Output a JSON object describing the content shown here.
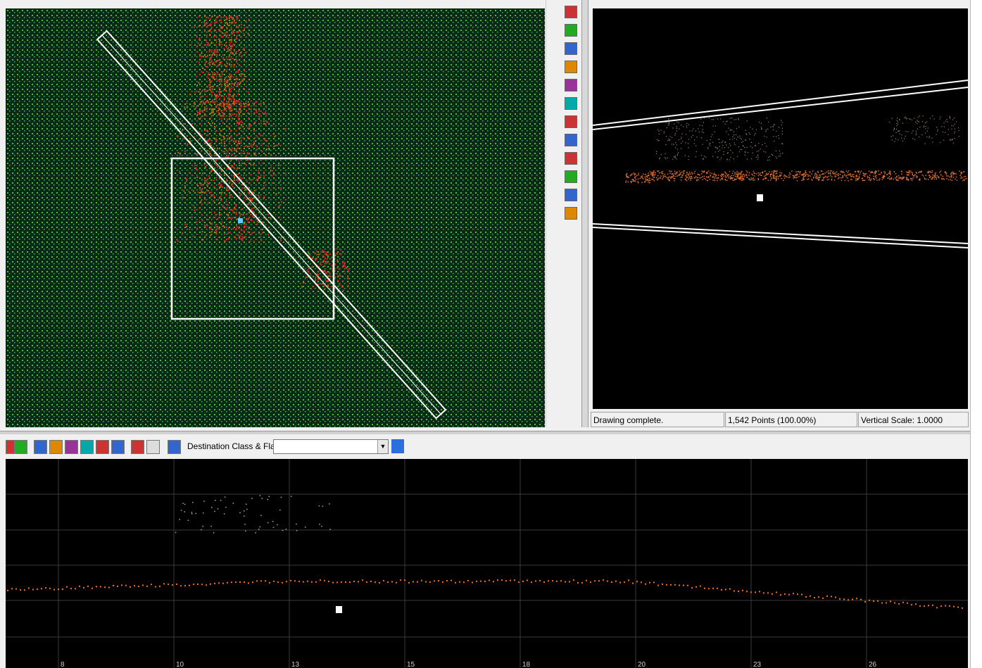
{
  "status_bar": {
    "message": "Drawing complete.",
    "points": "1,542 Points (100.00%)",
    "vertical_scale": "Vertical Scale: 1.0000"
  },
  "toolbar": {
    "destination_label": "Destination Class & Flags:"
  },
  "profile": {
    "x_labels": [
      "8",
      "10",
      "13",
      "15",
      "18",
      "20",
      "23",
      "26"
    ]
  }
}
